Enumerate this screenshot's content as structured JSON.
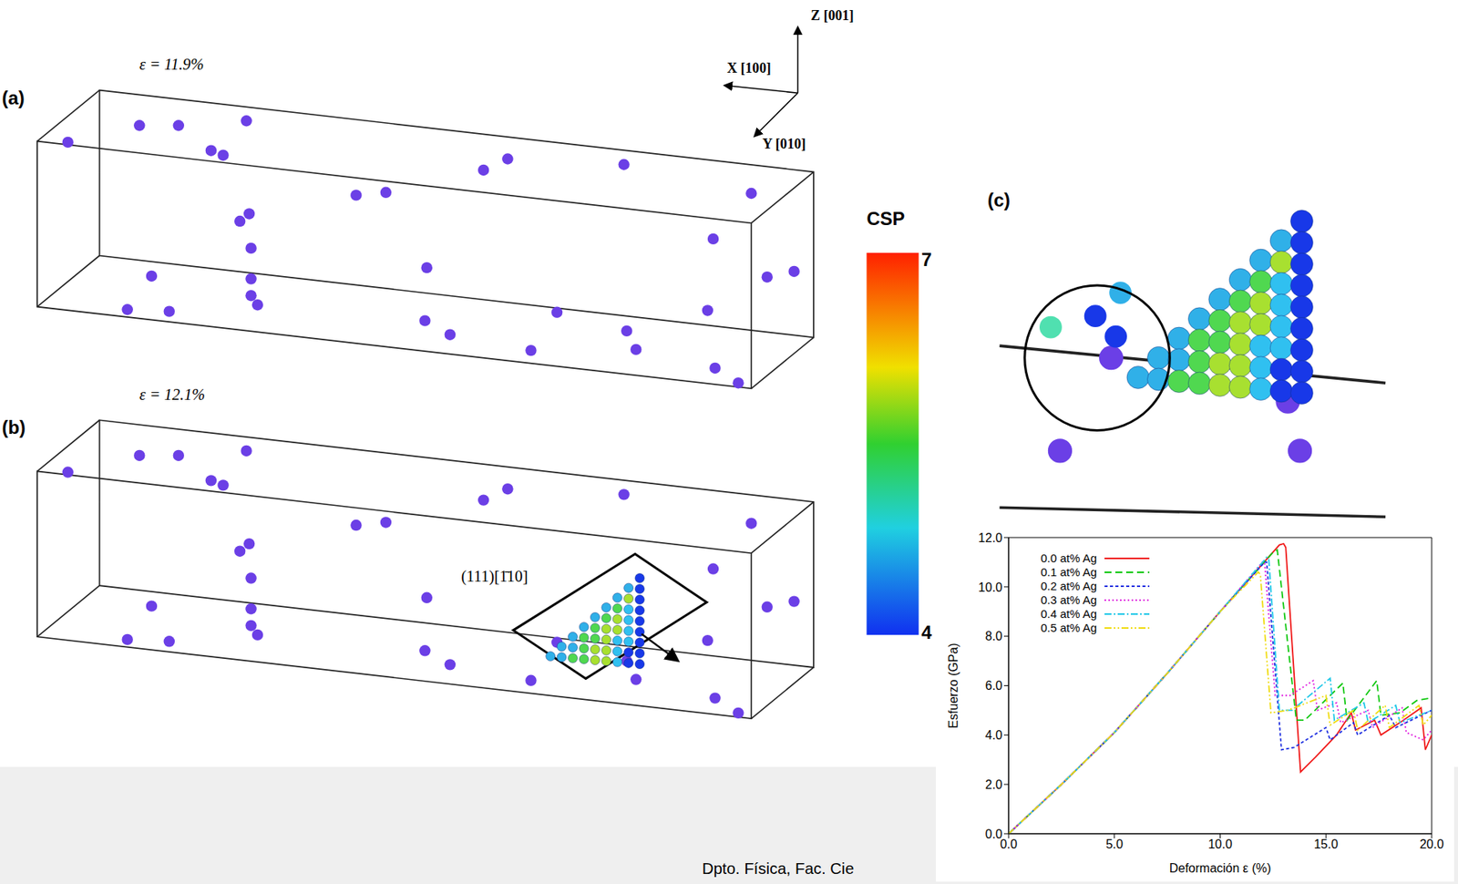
{
  "panels": {
    "a": {
      "label": "(a)",
      "strain": "ε = 11.9%"
    },
    "b": {
      "label": "(b)",
      "strain": "ε = 12.1%",
      "slip_system": "(111)[1̄10]"
    },
    "c": {
      "label": "(c)"
    }
  },
  "axes": {
    "x": "X [100]",
    "y": "Y [010]",
    "z": "Z [001]"
  },
  "colorbar": {
    "title": "CSP",
    "range": [
      4,
      7
    ],
    "ticks": [
      4,
      7
    ]
  },
  "footer": "Dpto. Física, Fac. Cie",
  "chart_data": {
    "type": "line",
    "x_label": "Deformación ε (%)",
    "y_label": "Esfuerzo (GPa)",
    "xlim": [
      0,
      20
    ],
    "xticks": [
      {
        "value": 0,
        "label": "0.0"
      },
      {
        "value": 5,
        "label": "5.0"
      },
      {
        "value": 10,
        "label": "10.0"
      },
      {
        "value": 15,
        "label": "15.0"
      },
      {
        "value": 20,
        "label": "20.0"
      }
    ],
    "ylim": [
      0,
      12
    ],
    "yticks": [
      {
        "value": 0,
        "label": "0.0"
      },
      {
        "value": 2,
        "label": "2.0"
      },
      {
        "value": 4,
        "label": "4.0"
      },
      {
        "value": 6,
        "label": "6.0"
      },
      {
        "value": 8,
        "label": "8.0"
      },
      {
        "value": 10,
        "label": "10.0"
      },
      {
        "value": 12,
        "label": "12.0"
      }
    ],
    "legend": "upper left",
    "series": [
      {
        "name": "0.0 at% Ag",
        "color": "#f01818",
        "line_style": "solid",
        "x": [
          0,
          2.5,
          5,
          7.5,
          10,
          12.8,
          13.0,
          13.1,
          13.8,
          14.5,
          15.5,
          16.2,
          16.4,
          17.3,
          17.6,
          18.5,
          19.5,
          19.7,
          20
        ],
        "values": [
          0,
          2.0,
          4.1,
          6.5,
          9.0,
          11.7,
          11.75,
          11.6,
          2.5,
          3.1,
          4.0,
          4.9,
          4.2,
          4.6,
          4.0,
          4.5,
          5.1,
          3.4,
          4.0
        ]
      },
      {
        "name": "0.1 at% Ag",
        "color": "#10c810",
        "line_style": "dashed",
        "x": [
          0,
          2.5,
          5,
          7.5,
          10,
          12.5,
          12.7,
          13.6,
          14.0,
          15.8,
          16.0,
          17.4,
          17.6,
          18.5,
          19.3,
          20
        ],
        "values": [
          0,
          2.0,
          4.1,
          6.5,
          9.0,
          11.4,
          11.5,
          4.6,
          4.6,
          6.1,
          4.6,
          6.2,
          4.8,
          4.9,
          5.4,
          5.5
        ]
      },
      {
        "name": "0.2 at% Ag",
        "color": "#2030e0",
        "line_style": "densely_dashed",
        "x": [
          0,
          2.5,
          5,
          7.5,
          10,
          12.1,
          12.2,
          12.9,
          13.5,
          15.0,
          15.2,
          16.3,
          16.5,
          18.0,
          18.3,
          20
        ],
        "values": [
          0,
          2.0,
          4.1,
          6.5,
          9.0,
          11.0,
          11.0,
          3.4,
          3.5,
          4.3,
          3.8,
          4.5,
          4.0,
          4.8,
          4.3,
          5.0
        ]
      },
      {
        "name": "0.3 at% Ag",
        "color": "#e020e0",
        "line_style": "dotted",
        "x": [
          0,
          2.5,
          5,
          7.5,
          10,
          12.0,
          12.1,
          12.6,
          13.3,
          14.4,
          14.6,
          15.5,
          15.7,
          17.0,
          17.2,
          18.6,
          18.8,
          19.6,
          20
        ],
        "values": [
          0,
          2.0,
          4.1,
          6.5,
          9.0,
          11.0,
          11.0,
          5.6,
          5.6,
          6.2,
          5.0,
          5.3,
          4.5,
          5.0,
          4.3,
          5.1,
          4.1,
          3.8,
          4.2
        ]
      },
      {
        "name": "0.4 at% Ag",
        "color": "#20c8e8",
        "line_style": "dashdot",
        "x": [
          0,
          2.5,
          5,
          7.5,
          10,
          12.2,
          12.3,
          12.8,
          13.4,
          15.2,
          15.4,
          16.8,
          17.0,
          18.3,
          18.5,
          20
        ],
        "values": [
          0,
          2.0,
          4.1,
          6.5,
          9.0,
          11.2,
          11.1,
          5.0,
          5.0,
          6.3,
          4.6,
          5.3,
          4.5,
          5.2,
          4.5,
          5.0
        ]
      },
      {
        "name": "0.5 at% Ag",
        "color": "#f0dc10",
        "line_style": "dashdotdot",
        "x": [
          0,
          2.5,
          5,
          7.5,
          10,
          11.8,
          11.9,
          12.4,
          13.2,
          15.0,
          15.2,
          16.3,
          16.5,
          17.8,
          18.0,
          19.4,
          19.6,
          20
        ],
        "values": [
          0,
          2.0,
          4.1,
          6.5,
          9.0,
          10.6,
          10.5,
          4.9,
          5.0,
          5.6,
          4.4,
          5.0,
          4.2,
          5.2,
          4.3,
          5.2,
          4.4,
          4.8
        ]
      }
    ]
  }
}
